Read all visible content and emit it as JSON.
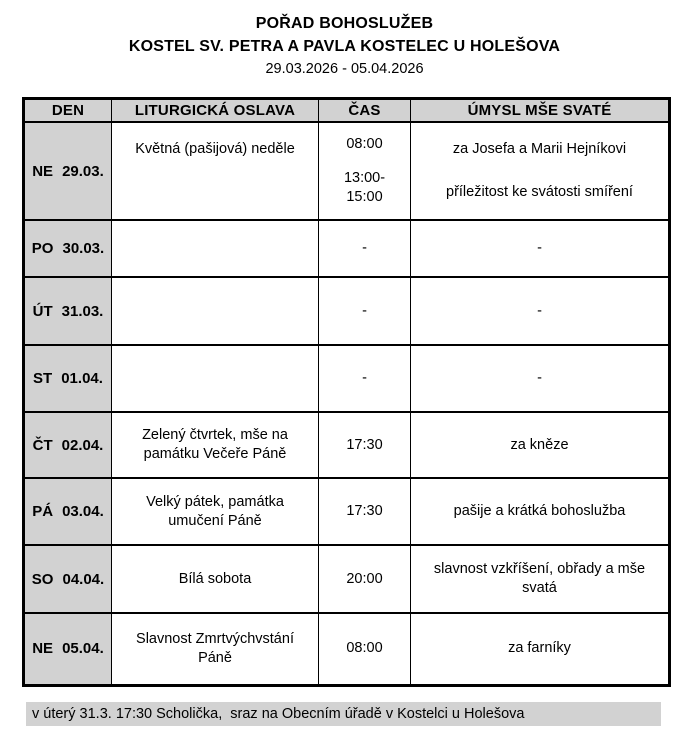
{
  "header": {
    "title": "POŘAD BOHOSLUŽEB",
    "subtitle": "KOSTEL SV. PETRA A PAVLA KOSTELEC U HOLEŠOVA",
    "date_range": "29.03.2026 - 05.04.2026"
  },
  "table": {
    "headers": [
      "DEN",
      "LITURGICKÁ OSLAVA",
      "ČAS",
      "ÚMYSL MŠE SVATÉ"
    ],
    "rows": [
      {
        "day": "NE",
        "date": "29.03.",
        "celebration": "Květná (pašijová) neděle",
        "entries": [
          {
            "time": "08:00",
            "intention": "za Josefa a Marii Hejníkovi"
          },
          {
            "time": "13:00-15:00",
            "intention": "příležitost ke svátosti smíření"
          }
        ]
      },
      {
        "day": "PO",
        "date": "30.03.",
        "celebration": "",
        "entries": [
          {
            "time": "-",
            "intention": "-"
          }
        ]
      },
      {
        "day": "ÚT",
        "date": "31.03.",
        "celebration": "",
        "entries": [
          {
            "time": "-",
            "intention": "-"
          }
        ]
      },
      {
        "day": "ST",
        "date": "01.04.",
        "celebration": "",
        "entries": [
          {
            "time": "-",
            "intention": "-"
          }
        ]
      },
      {
        "day": "ČT",
        "date": "02.04.",
        "celebration": "Zelený čtvrtek, mše na památku Večeře Páně",
        "entries": [
          {
            "time": "17:30",
            "intention": "za kněze"
          }
        ]
      },
      {
        "day": "PÁ",
        "date": "03.04.",
        "celebration": "Velký pátek, památka umučení Páně",
        "entries": [
          {
            "time": "17:30",
            "intention": "pašije a krátká bohoslužba"
          }
        ]
      },
      {
        "day": "SO",
        "date": "04.04.",
        "celebration": "Bílá sobota",
        "entries": [
          {
            "time": "20:00",
            "intention": "slavnost vzkříšení, obřady a mše svatá"
          }
        ]
      },
      {
        "day": "NE",
        "date": "05.04.",
        "celebration": "Slavnost Zmrtvýchvstání Páně",
        "entries": [
          {
            "time": "08:00",
            "intention": "za farníky"
          }
        ]
      }
    ]
  },
  "footer": {
    "note": "v úterý 31.3. 17:30 Scholička,  sraz na Obecním úřadě v Kostelci u Holešova"
  },
  "colors": {
    "cell_gray": "#d2d2d2",
    "border": "#000000",
    "text": "#000000",
    "background": "#ffffff"
  }
}
